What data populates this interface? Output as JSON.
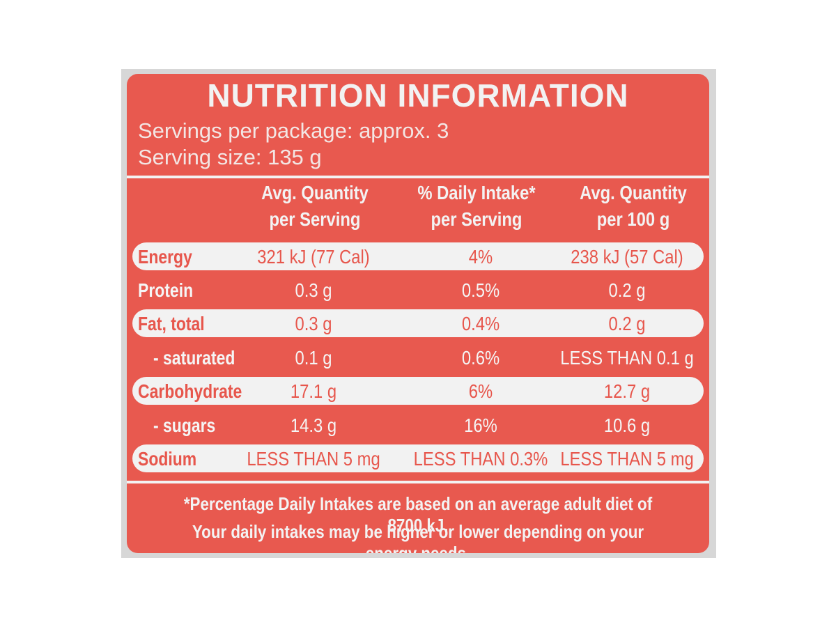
{
  "label": {
    "title": "NUTRITION INFORMATION",
    "servings_per_package": "Servings per package: approx. 3",
    "serving_size": "Serving size: 135 g"
  },
  "columns": [
    {
      "line1": "Avg. Quantity",
      "line2": "per Serving"
    },
    {
      "line1": "% Daily Intake*",
      "line2": "per Serving"
    },
    {
      "line1": "Avg. Quantity",
      "line2": "per 100 g"
    }
  ],
  "rows": [
    {
      "name": "Energy",
      "per_serving": "321 kJ (77 Cal)",
      "daily_intake": "4%",
      "per_100g": "238 kJ (57 Cal)"
    },
    {
      "name": "Protein",
      "per_serving": "0.3 g",
      "daily_intake": "0.5%",
      "per_100g": "0.2 g"
    },
    {
      "name": "Fat, total",
      "per_serving": "0.3 g",
      "daily_intake": "0.4%",
      "per_100g": "0.2 g"
    },
    {
      "name": "- saturated",
      "per_serving": "0.1 g",
      "daily_intake": "0.6%",
      "per_100g": "LESS THAN 0.1 g"
    },
    {
      "name": "Carbohydrate",
      "per_serving": "17.1 g",
      "daily_intake": "6%",
      "per_100g": "12.7 g"
    },
    {
      "name": "- sugars",
      "per_serving": "14.3 g",
      "daily_intake": "16%",
      "per_100g": "10.6 g"
    },
    {
      "name": "Sodium",
      "per_serving": "LESS THAN 5 mg",
      "daily_intake": "LESS THAN 0.3%",
      "per_100g": "LESS THAN 5 mg"
    }
  ],
  "footnote": {
    "line1": "*Percentage Daily Intakes are based on an average adult diet of 8700 kJ.",
    "line2": "Your daily intakes may be higher or lower depending on your energy needs."
  },
  "colors": {
    "panel_red": "#e8594f",
    "band_white": "#f2f2f2"
  }
}
